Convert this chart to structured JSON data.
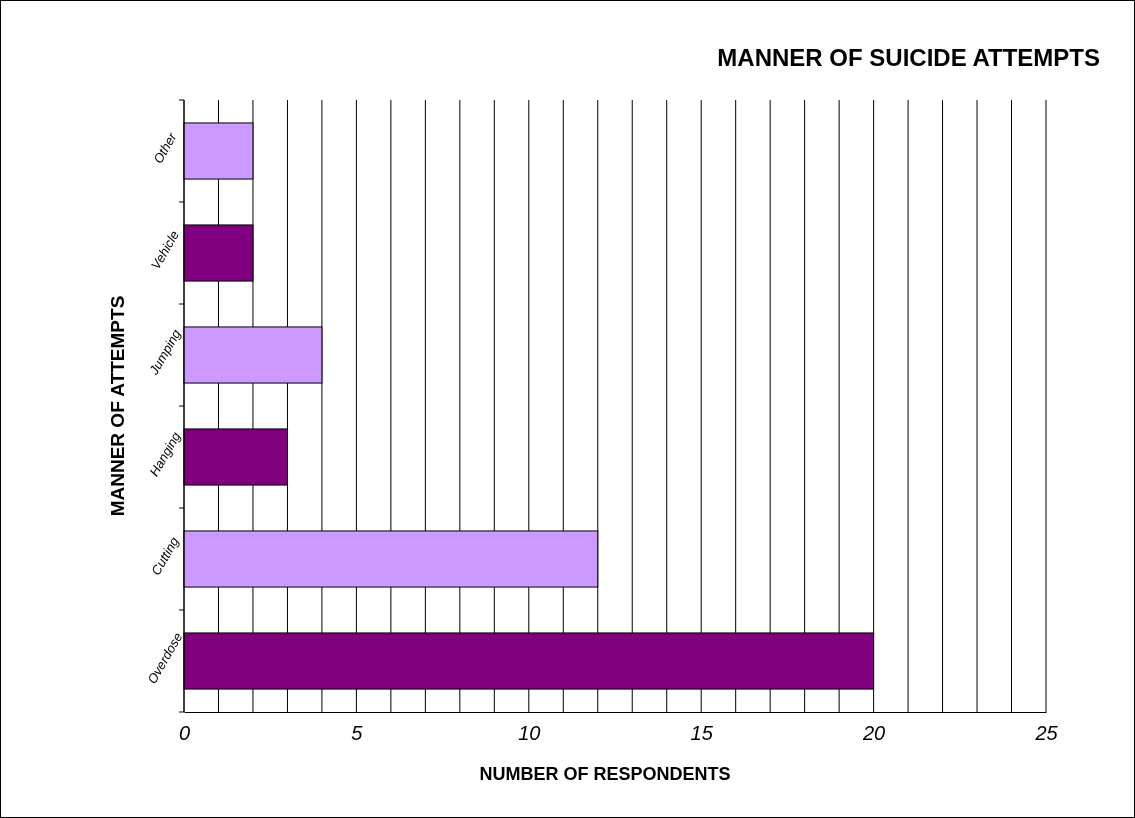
{
  "chart_data": {
    "type": "bar",
    "orientation": "horizontal",
    "title": "MANNER OF SUICIDE ATTEMPTS",
    "xlabel": "NUMBER OF RESPONDENTS",
    "ylabel": "MANNER OF ATTEMPTS",
    "categories": [
      "Other",
      "Vehicle",
      "Jumping",
      "Hanging",
      "Cutting",
      "Overdose"
    ],
    "values": [
      2,
      2,
      4,
      3,
      12,
      20
    ],
    "colors": [
      "#cc99ff",
      "#800080",
      "#cc99ff",
      "#800080",
      "#cc99ff",
      "#800080"
    ],
    "xlim": [
      0,
      25
    ],
    "xticks": [
      0,
      {
        "value": 1,
        "label": null
      },
      {
        "value": 2,
        "label": null
      },
      {
        "value": 3,
        "label": null
      },
      {
        "value": 4,
        "label": null
      },
      5,
      {
        "value": 6,
        "label": null
      },
      {
        "value": 7,
        "label": null
      },
      {
        "value": 8,
        "label": null
      },
      {
        "value": 9,
        "label": null
      },
      10,
      {
        "value": 11,
        "label": null
      },
      {
        "value": 12,
        "label": null
      },
      {
        "value": 13,
        "label": null
      },
      {
        "value": 14,
        "label": null
      },
      15,
      {
        "value": 16,
        "label": null
      },
      {
        "value": 17,
        "label": null
      },
      {
        "value": 18,
        "label": null
      },
      {
        "value": 19,
        "label": null
      },
      20,
      {
        "value": 21,
        "label": null
      },
      {
        "value": 22,
        "label": null
      },
      {
        "value": 23,
        "label": null
      },
      {
        "value": 24,
        "label": null
      },
      25
    ],
    "grid": "x"
  }
}
